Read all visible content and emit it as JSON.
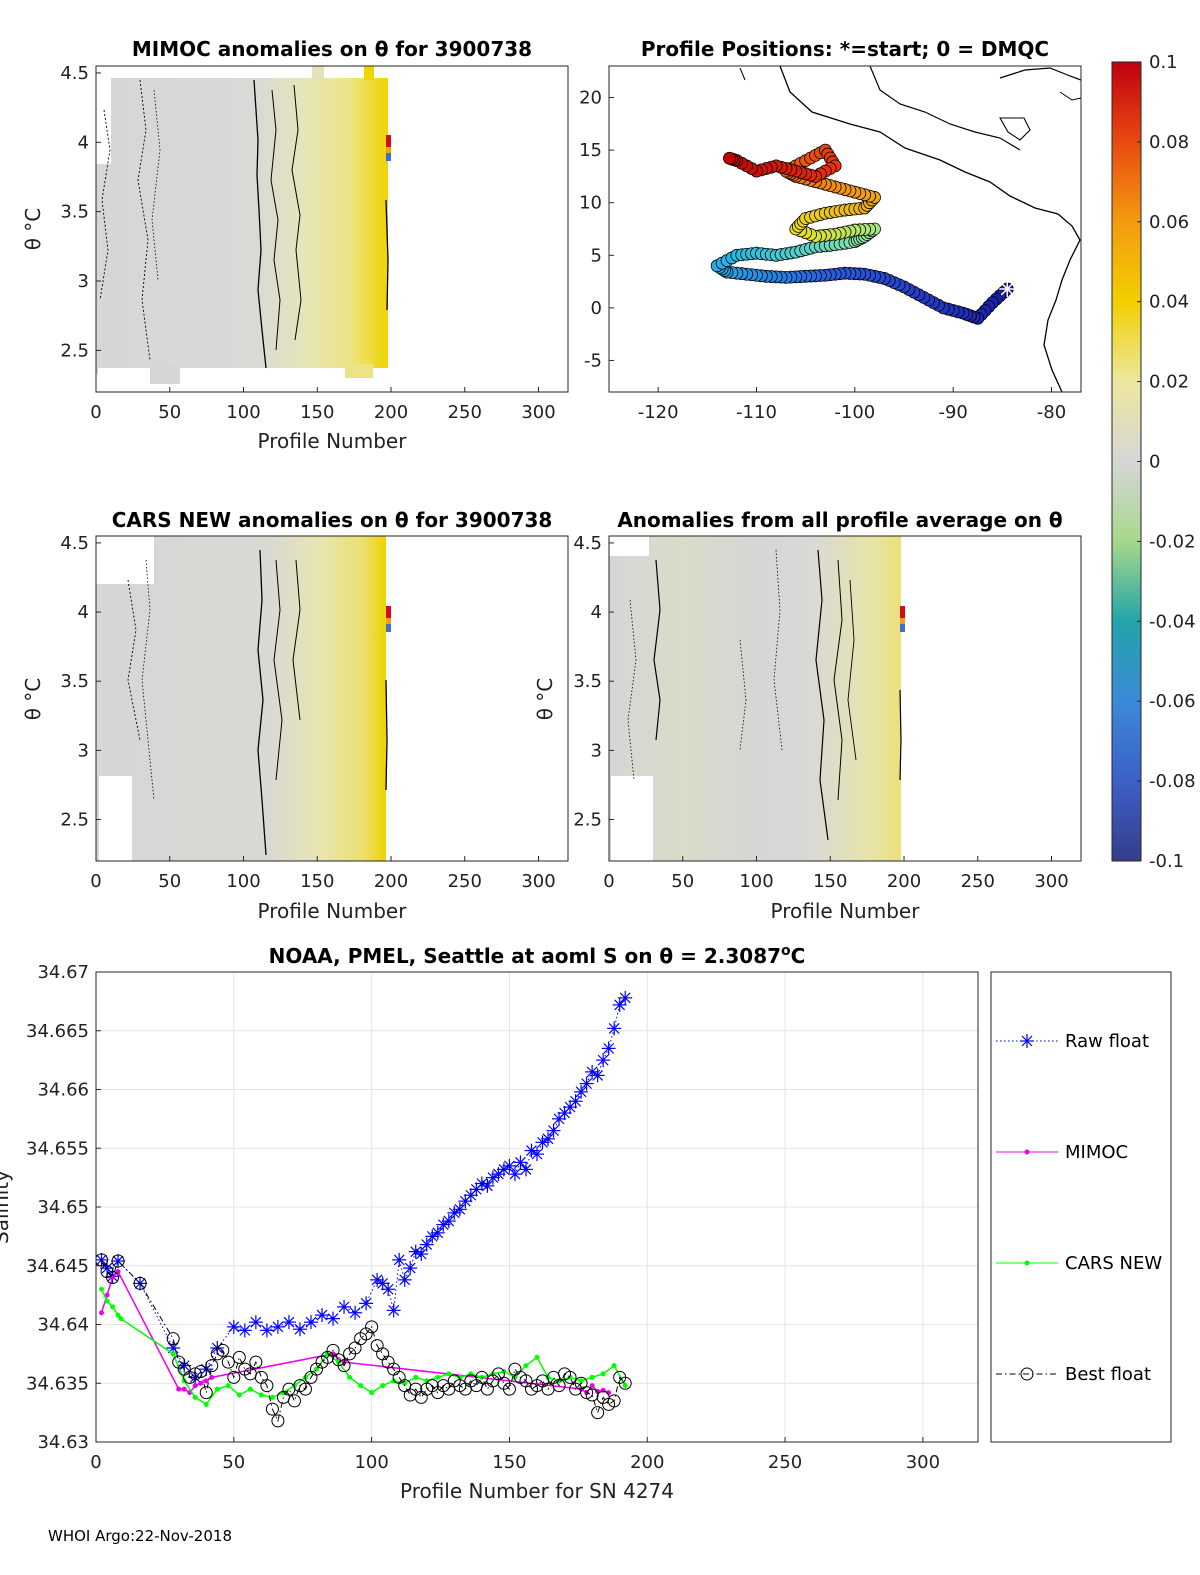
{
  "footer": "WHOI Argo:22-Nov-2018",
  "panels": {
    "mimoc": {
      "title": "MIMOC anomalies on θ  for 3900738",
      "xlabel": "Profile Number",
      "ylabel": "θ °C"
    },
    "positions": {
      "title": "Profile Positions: *=start; 0 = DMQC"
    },
    "cars": {
      "title": "CARS NEW anomalies on θ for 3900738",
      "xlabel": "Profile Number",
      "ylabel": "θ °C"
    },
    "allavg": {
      "title": "Anomalies from all profile average on θ",
      "xlabel": "Profile Number",
      "ylabel": "θ °C"
    }
  },
  "colorbar": {
    "ticks": [
      "0.1",
      "0.08",
      "0.06",
      "0.04",
      "0.02",
      "0",
      "-0.02",
      "-0.04",
      "-0.06",
      "-0.08",
      "-0.1"
    ],
    "range": [
      -0.1,
      0.1
    ]
  },
  "chart_data": [
    {
      "type": "heatmap",
      "title": "MIMOC anomalies on θ  for 3900738",
      "xlabel": "Profile Number",
      "ylabel": "θ °C",
      "xlim": [
        0,
        320
      ],
      "ylim": [
        2.2,
        4.55
      ],
      "xticks": [
        "0",
        "50",
        "100",
        "150",
        "200",
        "250",
        "300"
      ],
      "yticks": [
        "2.5",
        "3",
        "3.5",
        "4",
        "4.5"
      ]
    },
    {
      "type": "scatter",
      "title": "Profile Positions: *=start; 0 = DMQC",
      "xlim": [
        -125,
        -77
      ],
      "ylim": [
        -8,
        23
      ],
      "xticks": [
        "-120",
        "-110",
        "-100",
        "-90",
        "-80"
      ],
      "yticks": [
        "-5",
        "0",
        "5",
        "10",
        "15",
        "20"
      ],
      "track_lon": [
        -84.5,
        -86,
        -87.5,
        -89,
        -91,
        -93,
        -95,
        -97,
        -99,
        -101,
        -103,
        -105,
        -107,
        -109,
        -111,
        -113,
        -114,
        -112,
        -110,
        -108,
        -106,
        -104,
        -102,
        -100,
        -99,
        -98,
        -100,
        -102,
        -104,
        -106,
        -105,
        -103,
        -101,
        -99,
        -98,
        -100,
        -102,
        -104,
        -106,
        -107,
        -105,
        -103,
        -102,
        -104,
        -106,
        -108,
        -110,
        -112,
        -113
      ],
      "track_lat": [
        1.8,
        0.5,
        -1.0,
        -0.5,
        0.0,
        1.0,
        2.0,
        2.8,
        3.2,
        3.3,
        3.1,
        3.0,
        2.9,
        3.0,
        3.2,
        3.4,
        4.0,
        5.0,
        5.2,
        5.0,
        5.3,
        5.8,
        6.0,
        6.3,
        6.8,
        7.5,
        7.4,
        7.0,
        6.8,
        7.5,
        8.5,
        9.0,
        9.3,
        9.5,
        10.5,
        11.0,
        11.5,
        12.0,
        12.5,
        13.0,
        14.0,
        15.0,
        13.5,
        12.5,
        13.0,
        13.5,
        13.0,
        14.0,
        14.3
      ],
      "start": [
        -84.5,
        1.8
      ]
    },
    {
      "type": "heatmap",
      "title": "CARS NEW anomalies on θ for 3900738",
      "xlabel": "Profile Number",
      "ylabel": "θ °C",
      "xlim": [
        0,
        320
      ],
      "ylim": [
        2.2,
        4.55
      ],
      "xticks": [
        "0",
        "50",
        "100",
        "150",
        "200",
        "250",
        "300"
      ],
      "yticks": [
        "2.5",
        "3",
        "3.5",
        "4",
        "4.5"
      ]
    },
    {
      "type": "heatmap",
      "title": "Anomalies from all profile average on θ",
      "xlabel": "Profile Number",
      "ylabel": "θ °C",
      "xlim": [
        0,
        320
      ],
      "ylim": [
        2.2,
        4.55
      ],
      "xticks": [
        "0",
        "50",
        "100",
        "150",
        "200",
        "250",
        "300"
      ],
      "yticks": [
        "2.5",
        "3",
        "3.5",
        "4",
        "4.5"
      ]
    },
    {
      "type": "line",
      "title": "NOAA, PMEL, Seattle at aoml S on θ = 2.3087°C",
      "xlabel": "Profile Number for SN 4274",
      "ylabel": "Salinity",
      "xlim": [
        0,
        320
      ],
      "ylim": [
        34.63,
        34.67
      ],
      "xticks": [
        "0",
        "50",
        "100",
        "150",
        "200",
        "250",
        "300"
      ],
      "yticks": [
        "34.63",
        "34.635",
        "34.64",
        "34.645",
        "34.65",
        "34.655",
        "34.66",
        "34.665",
        "34.67"
      ],
      "grid": true,
      "legend_position": "outside-right",
      "series": [
        {
          "name": "Raw float",
          "color": "#0000ff",
          "x": [
            2,
            4,
            6,
            8,
            16,
            28,
            32,
            36,
            40,
            44,
            50,
            54,
            58,
            62,
            66,
            70,
            74,
            78,
            82,
            86,
            90,
            94,
            98,
            102,
            104,
            106,
            108,
            110,
            112,
            114,
            116,
            118,
            120,
            122,
            124,
            126,
            128,
            130,
            132,
            134,
            136,
            138,
            140,
            142,
            144,
            146,
            148,
            150,
            152,
            154,
            156,
            158,
            160,
            162,
            164,
            166,
            168,
            170,
            172,
            174,
            176,
            178,
            180,
            182,
            184,
            186,
            188,
            190,
            192
          ],
          "y": [
            34.6455,
            34.6448,
            34.6441,
            34.6454,
            34.6435,
            34.638,
            34.6365,
            34.6355,
            34.6362,
            34.638,
            34.6398,
            34.6395,
            34.6402,
            34.6395,
            34.6398,
            34.6402,
            34.6396,
            34.6402,
            34.6408,
            34.6405,
            34.6415,
            34.641,
            34.6418,
            34.6438,
            34.6435,
            34.643,
            34.6412,
            34.6455,
            34.6438,
            34.6448,
            34.6462,
            34.646,
            34.6468,
            34.6475,
            34.6478,
            34.6485,
            34.6488,
            34.6495,
            34.6498,
            34.6505,
            34.651,
            34.6515,
            34.652,
            34.6518,
            34.6525,
            34.6528,
            34.6532,
            34.6535,
            34.6528,
            34.6538,
            34.6532,
            34.6548,
            34.6545,
            34.6555,
            34.6558,
            34.6565,
            34.6575,
            34.658,
            34.6585,
            34.659,
            34.6598,
            34.6605,
            34.6615,
            34.6612,
            34.6625,
            34.6635,
            34.6652,
            34.6672,
            34.6678
          ]
        },
        {
          "name": "MIMOC",
          "color": "#ee00ee",
          "x": [
            2,
            4,
            6,
            8,
            30,
            32,
            34,
            36,
            38,
            40,
            42,
            86,
            88,
            90,
            176,
            178,
            180,
            182,
            184,
            186
          ],
          "y": [
            34.641,
            34.6425,
            34.644,
            34.6445,
            34.6345,
            34.6345,
            34.6342,
            34.6348,
            34.635,
            34.6352,
            34.6355,
            34.6375,
            34.637,
            34.6368,
            34.6345,
            34.6342,
            34.6348,
            34.6343,
            34.6344,
            34.6342
          ]
        },
        {
          "name": "CARS NEW",
          "color": "#00ff00",
          "x": [
            2,
            4,
            6,
            8,
            9,
            28,
            32,
            36,
            40,
            44,
            48,
            52,
            56,
            60,
            64,
            68,
            72,
            76,
            80,
            84,
            88,
            92,
            96,
            100,
            104,
            108,
            112,
            116,
            120,
            124,
            128,
            132,
            136,
            140,
            144,
            148,
            152,
            156,
            160,
            164,
            168,
            172,
            176,
            180,
            184,
            188,
            192
          ],
          "y": [
            34.643,
            34.642,
            34.6415,
            34.6408,
            34.6405,
            34.6375,
            34.6352,
            34.6338,
            34.6332,
            34.6345,
            34.6348,
            34.634,
            34.6345,
            34.634,
            34.6338,
            34.6342,
            34.6348,
            34.6355,
            34.6362,
            34.6375,
            34.6368,
            34.6355,
            34.6348,
            34.6342,
            34.6348,
            34.6352,
            34.635,
            34.6355,
            34.6352,
            34.6355,
            34.6358,
            34.6355,
            34.6358,
            34.6355,
            34.6358,
            34.636,
            34.6355,
            34.6365,
            34.6372,
            34.6355,
            34.6352,
            34.6355,
            34.6352,
            34.6355,
            34.6358,
            34.6365,
            34.6348
          ]
        },
        {
          "name": "Best float",
          "color": "#000000",
          "x": [
            2,
            4,
            6,
            8,
            16,
            28,
            30,
            32,
            34,
            36,
            38,
            40,
            42,
            44,
            46,
            48,
            50,
            52,
            54,
            56,
            58,
            60,
            62,
            64,
            66,
            68,
            70,
            72,
            74,
            76,
            78,
            80,
            82,
            84,
            86,
            88,
            90,
            92,
            94,
            96,
            98,
            100,
            102,
            104,
            106,
            108,
            110,
            112,
            114,
            116,
            118,
            120,
            122,
            124,
            126,
            128,
            130,
            132,
            134,
            136,
            138,
            140,
            142,
            144,
            146,
            148,
            150,
            152,
            154,
            156,
            158,
            160,
            162,
            164,
            166,
            168,
            170,
            172,
            174,
            176,
            178,
            180,
            182,
            184,
            186,
            188,
            190,
            192
          ],
          "y": [
            34.6455,
            34.6445,
            34.644,
            34.6454,
            34.6435,
            34.6388,
            34.6368,
            34.6362,
            34.6355,
            34.6358,
            34.636,
            34.6342,
            34.6365,
            34.6375,
            34.6378,
            34.6368,
            34.6355,
            34.6372,
            34.6362,
            34.6358,
            34.6368,
            34.6355,
            34.6348,
            34.6328,
            34.6318,
            34.6338,
            34.6345,
            34.6335,
            34.6348,
            34.6345,
            34.6355,
            34.6362,
            34.6368,
            34.6372,
            34.6378,
            34.637,
            34.6365,
            34.6375,
            34.638,
            34.6388,
            34.6392,
            34.6398,
            34.6382,
            34.6375,
            34.6368,
            34.6362,
            34.6355,
            34.6348,
            34.634,
            34.6345,
            34.6338,
            34.6345,
            34.6348,
            34.6342,
            34.6348,
            34.6345,
            34.6352,
            34.6348,
            34.6345,
            34.6352,
            34.6348,
            34.6355,
            34.6345,
            34.6352,
            34.6358,
            34.635,
            34.6345,
            34.6362,
            34.6355,
            34.6352,
            34.6345,
            34.6348,
            34.6352,
            34.6345,
            34.6355,
            34.6348,
            34.6358,
            34.6355,
            34.6345,
            34.635,
            34.6342,
            34.634,
            34.6325,
            34.6338,
            34.6332,
            34.6335,
            34.6355,
            34.635
          ]
        }
      ]
    }
  ]
}
